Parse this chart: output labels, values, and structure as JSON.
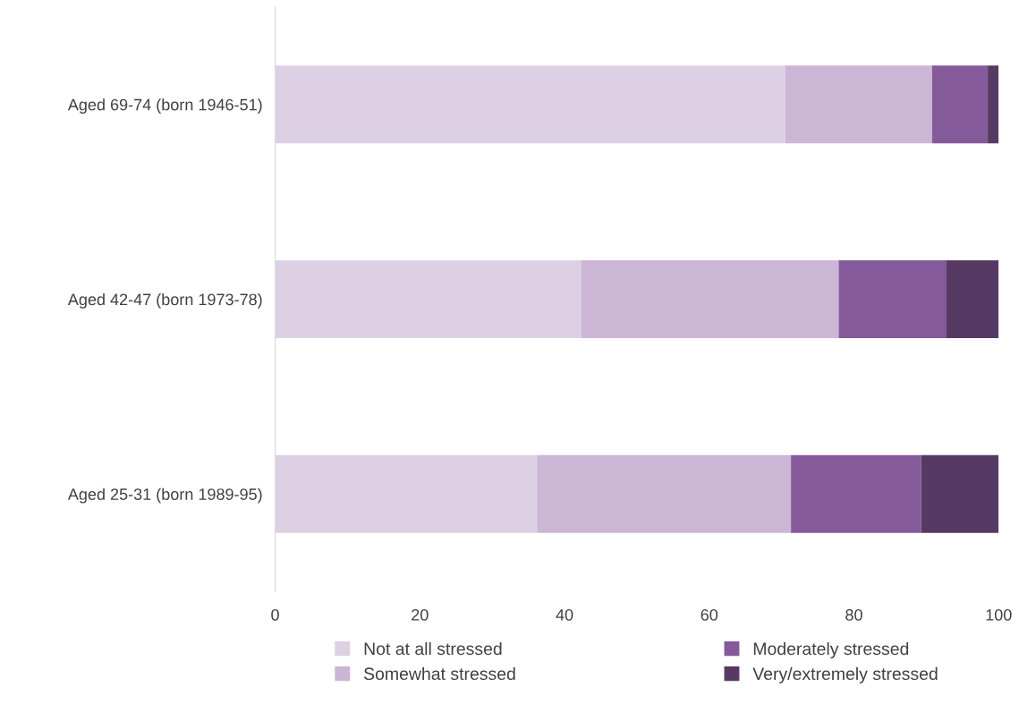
{
  "chart_data": {
    "type": "bar",
    "orientation": "horizontal",
    "stacked": true,
    "categories": [
      "Aged 69-74 (born 1946-51)",
      "Aged 42-47 (born 1973-78)",
      "Aged 25-31 (born 1989-95)"
    ],
    "series": [
      {
        "name": "Not at all stressed",
        "color": "#ddd0e4",
        "values": [
          70.5,
          42.3,
          36.2
        ]
      },
      {
        "name": "Somewhat stressed",
        "color": "#cbb6d6",
        "values": [
          20.3,
          35.6,
          35.1
        ]
      },
      {
        "name": "Moderately stressed",
        "color": "#845a9a",
        "values": [
          7.7,
          14.9,
          18.0
        ]
      },
      {
        "name": "Very/extremely stressed",
        "color": "#573a63",
        "values": [
          1.5,
          7.2,
          10.7
        ]
      }
    ],
    "xlim": [
      0,
      100
    ],
    "xticks": [
      0,
      20,
      40,
      60,
      80,
      100
    ],
    "grid": false,
    "legend": "bottom"
  }
}
